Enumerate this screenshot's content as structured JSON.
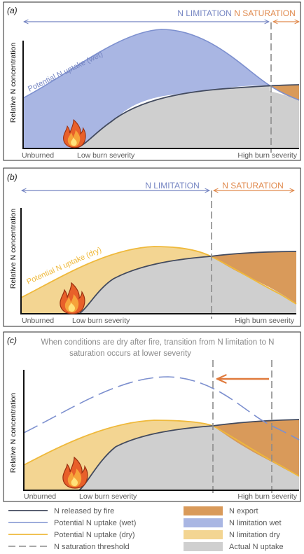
{
  "colors": {
    "wet": "#7d90cf",
    "wet_fill": "#a9b6e3",
    "dry": "#efb93b",
    "dry_fill": "#f3d592",
    "export_fill": "#d99a5a",
    "uptake_fill": "#cfcfcf",
    "released": "#424a5e",
    "threshold": "#8c8c8c",
    "lim_text": "#7585c2",
    "sat_text": "#e08a4e",
    "axis": "#111111",
    "label": "#5a5a5a",
    "arrow": "#e07a3c"
  },
  "panels": [
    {
      "tag": "(a)",
      "ylabel": "Relative N concentration",
      "limitation_label": "N  LIMITATION",
      "saturation_label": "N  SATURATION",
      "uptake_label": "Potential N uptake (wet)",
      "x_labels": [
        "Unburned",
        "Low burn severity",
        "High burn severity"
      ],
      "fire_icon": "fire-icon"
    },
    {
      "tag": "(b)",
      "ylabel": "Relative N concentration",
      "limitation_label": "N LIMITATION",
      "saturation_label": "N SATURATION",
      "uptake_label": "Potential N uptake (dry)",
      "x_labels": [
        "Unburned",
        "Low burn severity",
        "High burn severity"
      ],
      "fire_icon": "fire-icon"
    },
    {
      "tag": "(c)",
      "ylabel": "Relative N concentration",
      "annotation_line1": "When conditions are dry after fire, transition from N limitation to N",
      "annotation_line2": "saturation occurs at lower severity",
      "x_labels": [
        "Unburned",
        "Low burn severity",
        "High burn severity"
      ],
      "fire_icon": "fire-icon"
    }
  ],
  "legend": {
    "lines": [
      {
        "key": "released",
        "label": "N released by fire"
      },
      {
        "key": "wet",
        "label": "Potential N uptake (wet)"
      },
      {
        "key": "dry",
        "label": "Potential N uptake (dry)"
      },
      {
        "key": "threshold",
        "label": "N saturation threshold"
      }
    ],
    "fills": [
      {
        "key": "export_fill",
        "label": "N export"
      },
      {
        "key": "wet_fill",
        "label": "N limitation wet"
      },
      {
        "key": "dry_fill",
        "label": "N limitation dry"
      },
      {
        "key": "uptake_fill",
        "label": "Actual N uptake"
      }
    ]
  }
}
